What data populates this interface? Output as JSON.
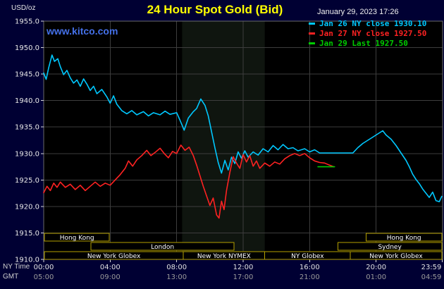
{
  "header": {
    "unit_label": "USD/oz",
    "title": "24 Hour Spot Gold (Bid)",
    "datetime": "January 29, 2023 17:26",
    "kitco_url": "www.kitco.com"
  },
  "legend": {
    "items": [
      {
        "label": "Jan 26 NY close 1930.10",
        "color": "#00c8ff"
      },
      {
        "label": "Jan 27 NY close 1927.50",
        "color": "#ff2222"
      },
      {
        "label": "Jan 29 Last 1927.50",
        "color": "#00cc00"
      }
    ]
  },
  "axis_labels": {
    "ny_time": "NY Time",
    "gmt": "GMT"
  },
  "chart_data": {
    "type": "line",
    "title": "24 Hour Spot Gold (Bid)",
    "ylabel": "USD/oz",
    "ylim": [
      1910,
      1955
    ],
    "y_tick_step": 5,
    "y_tick_labels": [
      "1955.0",
      "1950.0",
      "1945.0",
      "1940.0",
      "1935.0",
      "1930.0",
      "1925.0",
      "1920.0",
      "1915.0",
      "1910.0"
    ],
    "x_axis_hours": [
      0,
      4,
      8,
      12,
      16,
      20,
      23.983
    ],
    "x_tick_labels_ny": [
      "00:00",
      "04:00",
      "08:00",
      "12:00",
      "16:00",
      "20:00",
      "23:59"
    ],
    "x_tick_labels_gmt": [
      "05:00",
      "09:00",
      "13:00",
      "17:00",
      "21:00",
      "01:00",
      "04:59"
    ],
    "grid": true,
    "shaded_region": {
      "from_hour": 8.33,
      "to_hour": 13.3,
      "color": "#0f150f"
    },
    "series": [
      {
        "name": "Jan 26 NY close 1930.10",
        "color": "#00c8ff",
        "points": [
          [
            0.0,
            1945.2
          ],
          [
            0.15,
            1944.0
          ],
          [
            0.3,
            1946.2
          ],
          [
            0.5,
            1948.6
          ],
          [
            0.65,
            1947.4
          ],
          [
            0.85,
            1947.9
          ],
          [
            1.0,
            1946.4
          ],
          [
            1.2,
            1944.9
          ],
          [
            1.4,
            1945.7
          ],
          [
            1.6,
            1944.3
          ],
          [
            1.8,
            1943.3
          ],
          [
            2.0,
            1943.9
          ],
          [
            2.2,
            1942.7
          ],
          [
            2.4,
            1944.1
          ],
          [
            2.6,
            1943.1
          ],
          [
            2.8,
            1941.9
          ],
          [
            3.0,
            1942.7
          ],
          [
            3.2,
            1941.3
          ],
          [
            3.5,
            1942.1
          ],
          [
            3.8,
            1940.7
          ],
          [
            4.0,
            1939.5
          ],
          [
            4.2,
            1940.9
          ],
          [
            4.4,
            1939.3
          ],
          [
            4.7,
            1938.1
          ],
          [
            5.0,
            1937.5
          ],
          [
            5.3,
            1938.1
          ],
          [
            5.6,
            1937.3
          ],
          [
            6.0,
            1937.9
          ],
          [
            6.3,
            1937.1
          ],
          [
            6.6,
            1937.7
          ],
          [
            7.0,
            1937.3
          ],
          [
            7.3,
            1938.0
          ],
          [
            7.6,
            1937.4
          ],
          [
            8.0,
            1937.7
          ],
          [
            8.2,
            1936.3
          ],
          [
            8.45,
            1934.4
          ],
          [
            8.7,
            1936.7
          ],
          [
            9.0,
            1937.9
          ],
          [
            9.2,
            1938.5
          ],
          [
            9.45,
            1940.3
          ],
          [
            9.7,
            1939.1
          ],
          [
            9.9,
            1937.1
          ],
          [
            10.1,
            1934.1
          ],
          [
            10.3,
            1931.1
          ],
          [
            10.5,
            1928.3
          ],
          [
            10.7,
            1926.3
          ],
          [
            10.9,
            1928.7
          ],
          [
            11.1,
            1926.9
          ],
          [
            11.3,
            1929.3
          ],
          [
            11.5,
            1928.1
          ],
          [
            11.7,
            1930.3
          ],
          [
            11.9,
            1929.1
          ],
          [
            12.1,
            1930.5
          ],
          [
            12.3,
            1929.3
          ],
          [
            12.6,
            1930.3
          ],
          [
            12.9,
            1929.7
          ],
          [
            13.2,
            1930.9
          ],
          [
            13.5,
            1930.3
          ],
          [
            13.8,
            1931.5
          ],
          [
            14.1,
            1930.7
          ],
          [
            14.4,
            1931.7
          ],
          [
            14.7,
            1930.9
          ],
          [
            15.0,
            1931.1
          ],
          [
            15.3,
            1930.5
          ],
          [
            15.7,
            1930.9
          ],
          [
            16.0,
            1930.3
          ],
          [
            16.3,
            1930.7
          ],
          [
            16.6,
            1930.1
          ],
          [
            18.6,
            1930.1
          ],
          [
            18.9,
            1931.1
          ],
          [
            19.2,
            1931.9
          ],
          [
            19.5,
            1932.5
          ],
          [
            19.8,
            1933.1
          ],
          [
            20.1,
            1933.7
          ],
          [
            20.4,
            1934.3
          ],
          [
            20.6,
            1933.5
          ],
          [
            20.9,
            1932.7
          ],
          [
            21.2,
            1931.5
          ],
          [
            21.5,
            1930.1
          ],
          [
            21.8,
            1928.7
          ],
          [
            22.0,
            1927.5
          ],
          [
            22.2,
            1926.1
          ],
          [
            22.4,
            1925.1
          ],
          [
            22.6,
            1924.3
          ],
          [
            22.8,
            1923.3
          ],
          [
            23.0,
            1922.5
          ],
          [
            23.2,
            1921.7
          ],
          [
            23.4,
            1922.7
          ],
          [
            23.6,
            1921.1
          ],
          [
            23.8,
            1920.9
          ],
          [
            23.95,
            1921.9
          ]
        ]
      },
      {
        "name": "Jan 27 NY close 1927.50",
        "color": "#ff2222",
        "points": [
          [
            0.0,
            1922.6
          ],
          [
            0.2,
            1923.8
          ],
          [
            0.4,
            1923.0
          ],
          [
            0.6,
            1924.4
          ],
          [
            0.8,
            1923.6
          ],
          [
            1.0,
            1924.6
          ],
          [
            1.3,
            1923.6
          ],
          [
            1.6,
            1924.2
          ],
          [
            1.9,
            1923.2
          ],
          [
            2.2,
            1924.0
          ],
          [
            2.5,
            1923.0
          ],
          [
            2.8,
            1923.8
          ],
          [
            3.1,
            1924.6
          ],
          [
            3.4,
            1923.8
          ],
          [
            3.7,
            1924.4
          ],
          [
            4.0,
            1924.0
          ],
          [
            4.3,
            1925.0
          ],
          [
            4.6,
            1926.0
          ],
          [
            4.9,
            1927.2
          ],
          [
            5.1,
            1928.6
          ],
          [
            5.35,
            1927.6
          ],
          [
            5.6,
            1928.8
          ],
          [
            5.9,
            1929.6
          ],
          [
            6.2,
            1930.6
          ],
          [
            6.45,
            1929.6
          ],
          [
            6.7,
            1930.2
          ],
          [
            7.0,
            1931.0
          ],
          [
            7.25,
            1930.0
          ],
          [
            7.5,
            1929.2
          ],
          [
            7.75,
            1930.4
          ],
          [
            8.0,
            1930.0
          ],
          [
            8.25,
            1931.6
          ],
          [
            8.5,
            1930.6
          ],
          [
            8.75,
            1931.2
          ],
          [
            9.0,
            1929.6
          ],
          [
            9.2,
            1927.8
          ],
          [
            9.4,
            1925.8
          ],
          [
            9.6,
            1923.8
          ],
          [
            9.8,
            1922.0
          ],
          [
            10.0,
            1920.2
          ],
          [
            10.2,
            1921.6
          ],
          [
            10.4,
            1918.4
          ],
          [
            10.55,
            1917.8
          ],
          [
            10.7,
            1921.0
          ],
          [
            10.85,
            1919.4
          ],
          [
            11.0,
            1923.0
          ],
          [
            11.2,
            1926.4
          ],
          [
            11.4,
            1929.4
          ],
          [
            11.6,
            1928.2
          ],
          [
            11.8,
            1927.2
          ],
          [
            12.0,
            1929.8
          ],
          [
            12.2,
            1928.4
          ],
          [
            12.4,
            1929.6
          ],
          [
            12.6,
            1927.6
          ],
          [
            12.8,
            1928.6
          ],
          [
            13.0,
            1927.2
          ],
          [
            13.3,
            1928.2
          ],
          [
            13.6,
            1927.6
          ],
          [
            13.9,
            1928.4
          ],
          [
            14.2,
            1928.0
          ],
          [
            14.5,
            1929.0
          ],
          [
            14.8,
            1929.6
          ],
          [
            15.1,
            1930.0
          ],
          [
            15.4,
            1929.6
          ],
          [
            15.7,
            1930.0
          ],
          [
            16.0,
            1929.2
          ],
          [
            16.3,
            1928.6
          ],
          [
            16.6,
            1928.3
          ],
          [
            16.9,
            1928.2
          ],
          [
            17.2,
            1927.8
          ],
          [
            17.45,
            1927.5
          ]
        ]
      },
      {
        "name": "Jan 29 Last 1927.50",
        "color": "#00cc00",
        "points": [
          [
            16.5,
            1927.5
          ],
          [
            17.5,
            1927.5
          ]
        ]
      }
    ],
    "sessions": [
      {
        "row": 0,
        "label": "Hong Kong",
        "from_hour": 0.05,
        "to_hour": 3.95
      },
      {
        "row": 0,
        "label": "Hong Kong",
        "from_hour": 19.4,
        "to_hour": 23.95
      },
      {
        "row": 1,
        "label": "London",
        "from_hour": 2.85,
        "to_hour": 11.45
      },
      {
        "row": 1,
        "label": "Sydney",
        "from_hour": 17.7,
        "to_hour": 23.95
      },
      {
        "row": 2,
        "label": "New York Globex",
        "from_hour": 0.05,
        "to_hour": 8.4
      },
      {
        "row": 2,
        "label": "New York NYMEX",
        "from_hour": 8.4,
        "to_hour": 13.3
      },
      {
        "row": 2,
        "label": "NY Globex",
        "from_hour": 13.3,
        "to_hour": 18.45
      },
      {
        "row": 2,
        "label": "New York Globex",
        "from_hour": 18.45,
        "to_hour": 23.95
      }
    ]
  }
}
